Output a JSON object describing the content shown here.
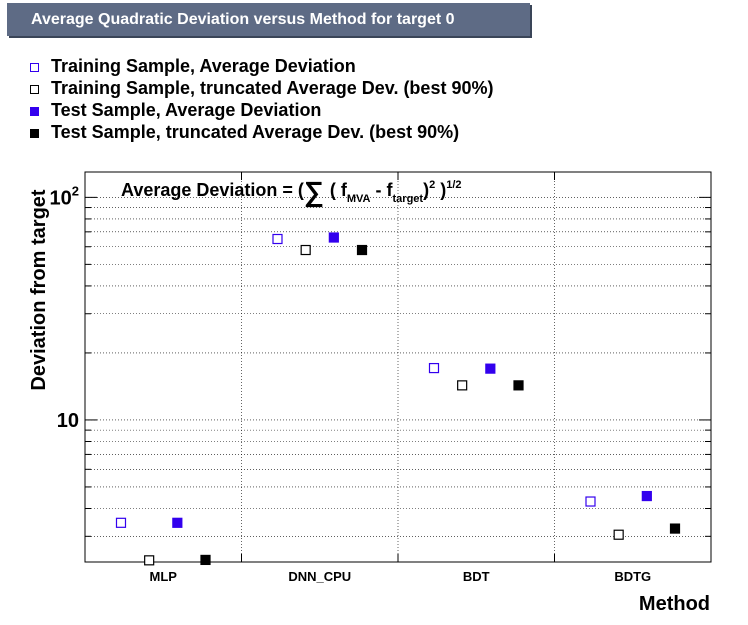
{
  "title": "Average Quadratic Deviation versus Method for target 0",
  "legend": [
    {
      "label": "Training Sample, Average Deviation",
      "color": "#3300ee",
      "filled": false
    },
    {
      "label": "Training Sample, truncated Average Dev. (best 90%)",
      "color": "#000000",
      "filled": false
    },
    {
      "label": "Test Sample, Average Deviation",
      "color": "#3300ee",
      "filled": true
    },
    {
      "label": "Test Sample, truncated Average Dev. (best 90%)",
      "color": "#000000",
      "filled": true
    }
  ],
  "formula": {
    "prefix": "Average Deviation = (",
    "sigma": "∑",
    "open": "( f",
    "sub1": "MVA",
    "mid": " - f",
    "sub2": "target",
    "close": ")",
    "sup1": "2",
    "end": " )",
    "sup2": "1/2"
  },
  "chart_data": {
    "type": "scatter",
    "xlabel": "Method",
    "ylabel": "Deviation from target",
    "yscale": "log",
    "ylim": [
      2.3,
      130
    ],
    "yticks": [
      {
        "value": 10,
        "label": "10"
      },
      {
        "value": 100,
        "label": "10",
        "sup": "2"
      }
    ],
    "categories": [
      "MLP",
      "DNN_CPU",
      "BDT",
      "BDTG"
    ],
    "grid": true,
    "series": [
      {
        "name": "Training Sample, Average Deviation",
        "values": [
          3.45,
          65,
          17.1,
          4.3
        ]
      },
      {
        "name": "Training Sample, truncated Average Dev. (best 90%)",
        "values": [
          2.34,
          58,
          14.3,
          3.05
        ]
      },
      {
        "name": "Test Sample, Average Deviation",
        "values": [
          3.45,
          66,
          17.0,
          4.55
        ]
      },
      {
        "name": "Test Sample, truncated Average Dev. (best 90%)",
        "values": [
          2.35,
          58,
          14.3,
          3.25
        ]
      }
    ]
  }
}
